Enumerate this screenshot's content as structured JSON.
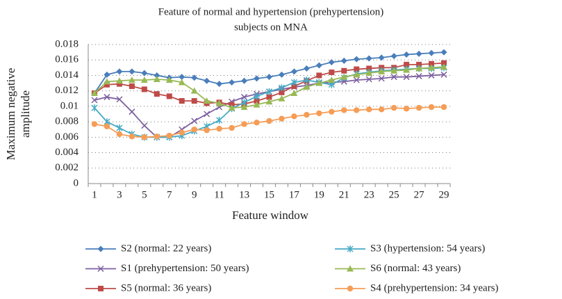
{
  "chart_data": {
    "type": "line",
    "title": [
      "Feature of normal and hypertension (prehypertension)",
      "subjects on MNA"
    ],
    "x_label": "Feature window",
    "y_label": [
      "Maximum negative",
      "amplitude"
    ],
    "categories": [
      1,
      null,
      3,
      null,
      5,
      null,
      7,
      null,
      9,
      null,
      11,
      null,
      13,
      null,
      15,
      null,
      17,
      null,
      19,
      null,
      21,
      null,
      23,
      null,
      25,
      null,
      27,
      null,
      29
    ],
    "ylim": [
      0,
      0.018
    ],
    "yticks": [
      0,
      0.002,
      0.004,
      0.006,
      0.008,
      0.01,
      0.012,
      0.014,
      0.016,
      0.018
    ],
    "grid": true,
    "series": [
      {
        "name": "S2 (normal: 22 years)",
        "color": "#4a7ebb",
        "marker": "diamond",
        "values": [
          0.0117,
          0.0141,
          0.0145,
          0.0145,
          0.0143,
          0.014,
          0.0137,
          0.0138,
          0.0137,
          0.0133,
          0.0129,
          0.0131,
          0.0133,
          0.0136,
          0.0138,
          0.0141,
          0.0145,
          0.0149,
          0.0153,
          0.0157,
          0.0159,
          0.0161,
          0.0162,
          0.0163,
          0.0165,
          0.0167,
          0.0168,
          0.0169,
          0.017
        ]
      },
      {
        "name": "S1 (prehypertension: 50 years)",
        "color": "#7d60a0",
        "marker": "x",
        "values": [
          0.0108,
          0.0112,
          0.0109,
          0.0093,
          0.0075,
          0.006,
          0.006,
          0.007,
          0.0081,
          0.009,
          0.0099,
          0.0106,
          0.0112,
          0.0116,
          0.0119,
          0.0122,
          0.0125,
          0.0127,
          0.013,
          0.0131,
          0.0132,
          0.0134,
          0.0135,
          0.0136,
          0.0138,
          0.0138,
          0.0139,
          0.014,
          0.0141
        ]
      },
      {
        "name": "S5 (normal: 36 years)",
        "color": "#be4b48",
        "marker": "square",
        "values": [
          0.0117,
          0.0128,
          0.0129,
          0.0126,
          0.0122,
          0.0116,
          0.0113,
          0.0107,
          0.0107,
          0.0104,
          0.0105,
          0.0102,
          0.0103,
          0.0107,
          0.0112,
          0.0118,
          0.0126,
          0.0133,
          0.014,
          0.0144,
          0.0146,
          0.0148,
          0.0149,
          0.015,
          0.015,
          0.0154,
          0.0154,
          0.0155,
          0.0156
        ]
      },
      {
        "name": "S3 (hypertension: 54 years)",
        "color": "#46aac5",
        "marker": "star",
        "values": [
          0.0098,
          0.008,
          0.0072,
          0.0064,
          0.006,
          0.006,
          0.006,
          0.0062,
          0.0068,
          0.0074,
          0.0082,
          0.0097,
          0.0105,
          0.0113,
          0.0119,
          0.0124,
          0.0131,
          0.0134,
          0.0131,
          0.0128,
          0.0137,
          0.0142,
          0.0144,
          0.0146,
          0.0147,
          0.0148,
          0.0149,
          0.0149,
          0.015
        ]
      },
      {
        "name": "S6 (normal: 43 years)",
        "color": "#98b954",
        "marker": "triangle",
        "values": [
          0.0117,
          0.0132,
          0.0133,
          0.0134,
          0.0134,
          0.0135,
          0.0134,
          0.0131,
          0.012,
          0.0107,
          0.0104,
          0.0098,
          0.0099,
          0.0102,
          0.0106,
          0.011,
          0.0117,
          0.0125,
          0.013,
          0.0134,
          0.0138,
          0.0141,
          0.0143,
          0.0145,
          0.0146,
          0.0147,
          0.0149,
          0.015,
          0.0151
        ]
      },
      {
        "name": "S4 (prehypertension: 34 years)",
        "color": "#f59d56",
        "marker": "circle",
        "values": [
          0.0077,
          0.0074,
          0.0064,
          0.0061,
          0.006,
          0.0061,
          0.0062,
          0.0066,
          0.007,
          0.0069,
          0.0071,
          0.0072,
          0.0077,
          0.0079,
          0.0081,
          0.0084,
          0.0087,
          0.0089,
          0.0091,
          0.0093,
          0.0095,
          0.0095,
          0.0096,
          0.0096,
          0.0098,
          0.0097,
          0.0098,
          0.0099,
          0.0099
        ]
      }
    ]
  }
}
